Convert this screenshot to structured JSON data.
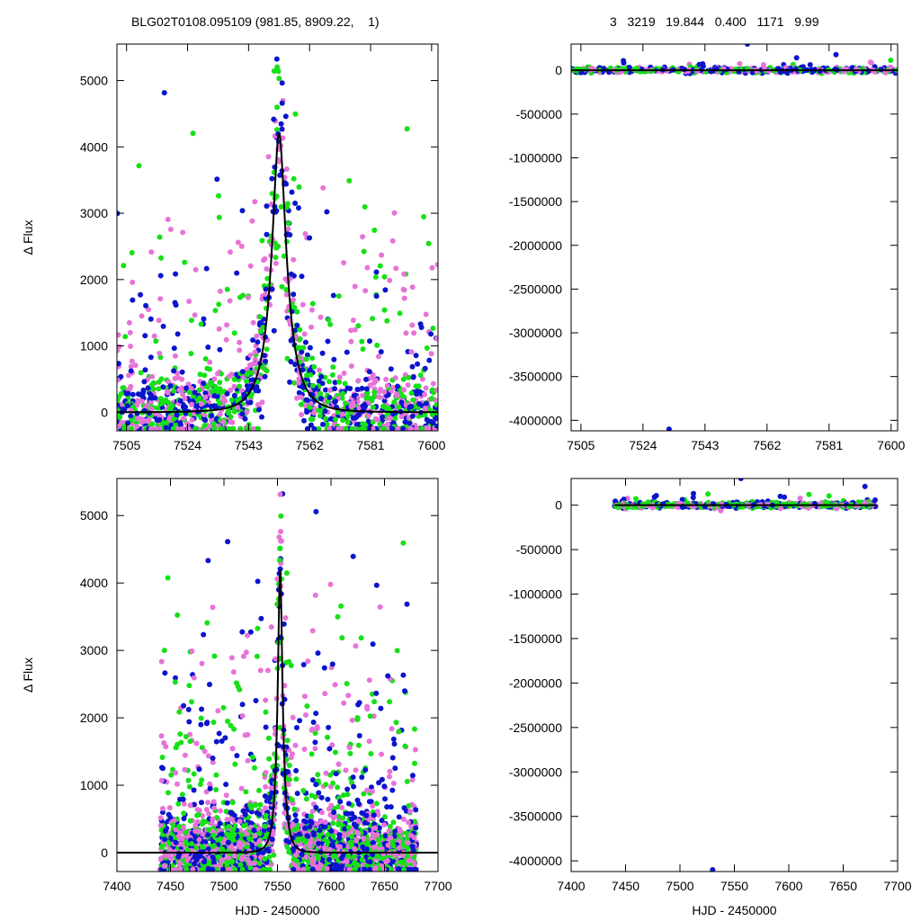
{
  "header": {
    "left": "BLG02T0108.095109 (981.85, 8909.22,    1)",
    "right": "3   3219   19.844   0.400   1171   9.99"
  },
  "colors": {
    "series_a": "#0a14cc",
    "series_b": "#e673d8",
    "series_c": "#16e016",
    "model": "#000000",
    "axis": "#000000"
  },
  "chart_data": [
    {
      "type": "scatter",
      "panel": "top-left",
      "xlabel": "",
      "ylabel": "Δ Flux",
      "xlim": [
        7502,
        7602
      ],
      "ylim": [
        -280,
        5550
      ],
      "xticks": [
        7505,
        7524,
        7543,
        7562,
        7581,
        7600
      ],
      "yticks": [
        0,
        1000,
        2000,
        3000,
        4000,
        5000
      ],
      "model": {
        "t0": 7552.5,
        "peak": 4200,
        "tE": 7,
        "u0": 0.3
      },
      "scatter": {
        "seed": 11,
        "n": 1500,
        "xrange": [
          7502,
          7602
        ],
        "background": 700
      }
    },
    {
      "type": "scatter",
      "panel": "top-right",
      "xlabel": "",
      "ylabel": "",
      "xlim": [
        7502,
        7602
      ],
      "ylim": [
        -4120000,
        300000
      ],
      "xticks": [
        7505,
        7524,
        7543,
        7562,
        7581,
        7600
      ],
      "yticks": [
        0,
        -500000,
        -1000000,
        -1500000,
        -2000000,
        -2500000,
        -3000000,
        -3500000,
        -4000000
      ],
      "outliers": [
        [
          7532,
          -4100000
        ],
        [
          7556,
          300000
        ],
        [
          7518,
          110000
        ]
      ],
      "scatter": {
        "seed": 23,
        "n": 500,
        "xrange": [
          7502,
          7602
        ],
        "band": 40000
      }
    },
    {
      "type": "scatter",
      "panel": "bottom-left",
      "xlabel": "HJD - 2450000",
      "ylabel": "Δ Flux",
      "xlim": [
        7400,
        7700
      ],
      "ylim": [
        -280,
        5550
      ],
      "xticks": [
        7400,
        7450,
        7500,
        7550,
        7600,
        7650,
        7700
      ],
      "yticks": [
        0,
        1000,
        2000,
        3000,
        4000,
        5000
      ],
      "model": {
        "t0": 7552.5,
        "peak": 4200,
        "tE": 7,
        "u0": 0.3
      },
      "scatter": {
        "seed": 37,
        "n": 2600,
        "xrange": [
          7440,
          7680
        ],
        "background": 700
      }
    },
    {
      "type": "scatter",
      "panel": "bottom-right",
      "xlabel": "HJD - 2450000",
      "ylabel": "",
      "xlim": [
        7400,
        7700
      ],
      "ylim": [
        -4120000,
        300000
      ],
      "xticks": [
        7400,
        7450,
        7500,
        7550,
        7600,
        7650,
        7700
      ],
      "yticks": [
        0,
        -500000,
        -1000000,
        -1500000,
        -2000000,
        -2500000,
        -3000000,
        -3500000,
        -4000000
      ],
      "outliers": [
        [
          7530,
          -4100000
        ],
        [
          7556,
          300000
        ],
        [
          7670,
          210000
        ]
      ],
      "scatter": {
        "seed": 51,
        "n": 700,
        "xrange": [
          7440,
          7680
        ],
        "band": 40000
      }
    }
  ]
}
